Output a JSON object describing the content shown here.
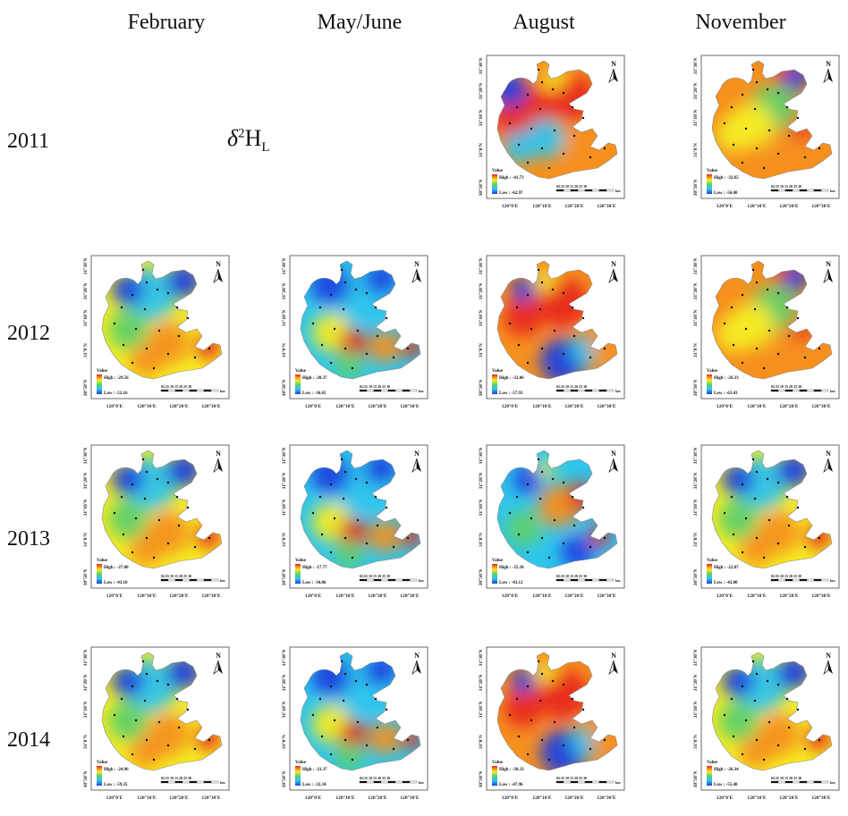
{
  "headers": {
    "columns": [
      "February",
      "May/June",
      "August",
      "November"
    ],
    "rows": [
      "2011",
      "2012",
      "2013",
      "2014"
    ]
  },
  "symbol": {
    "base": "δ",
    "sup": "2",
    "main": "H",
    "sub": "L"
  },
  "map_common": {
    "lat_labels": [
      "31°30'N",
      "31°20'N",
      "31°10'N",
      "31°0'N",
      "30°50'N"
    ],
    "lon_labels": [
      "120°0'E",
      "120°10'E",
      "120°20'E",
      "120°30'E"
    ],
    "legend_title": "Value",
    "scale_bar": "02.55  10  15  20  25  30",
    "scale_unit": "km",
    "north": "N"
  },
  "maps": [
    {
      "id": "2011-aug",
      "year": "2011",
      "season": "August",
      "high": "High : -41.73",
      "low": "Low : -62.97",
      "theme": "hot-west"
    },
    {
      "id": "2011-nov",
      "year": "2011",
      "season": "November",
      "high": "High : -32.65",
      "low": "Low : -56.00",
      "theme": "warm"
    },
    {
      "id": "2012-feb",
      "year": "2012",
      "season": "February",
      "high": "High : -29.56",
      "low": "Low : -52.16",
      "theme": "cool-north"
    },
    {
      "id": "2012-may",
      "year": "2012",
      "season": "May/June",
      "high": "High : -20.37",
      "low": "Low : -36.65",
      "theme": "cool"
    },
    {
      "id": "2012-aug",
      "year": "2012",
      "season": "August",
      "high": "High : -32.06",
      "low": "Low : -57.93",
      "theme": "hot"
    },
    {
      "id": "2012-nov",
      "year": "2012",
      "season": "November",
      "high": "High : -26.33",
      "low": "Low : -63.43",
      "theme": "warm"
    },
    {
      "id": "2013-feb",
      "year": "2013",
      "season": "February",
      "high": "High : -27.08",
      "low": "Low : -43.10",
      "theme": "cool-north"
    },
    {
      "id": "2013-may",
      "year": "2013",
      "season": "May/June",
      "high": "High : -17.77",
      "low": "Low : -34.06",
      "theme": "cool"
    },
    {
      "id": "2013-aug",
      "year": "2013",
      "season": "August",
      "high": "High : -25.18",
      "low": "Low : -43.12",
      "theme": "mixed"
    },
    {
      "id": "2013-nov",
      "year": "2013",
      "season": "November",
      "high": "High : -22.07",
      "low": "Low : -43.00",
      "theme": "cool-north"
    },
    {
      "id": "2014-feb",
      "year": "2014",
      "season": "February",
      "high": "High : -24.96",
      "low": "Low : -59.35",
      "theme": "cool-north"
    },
    {
      "id": "2014-may",
      "year": "2014",
      "season": "May/June",
      "high": "High : -21.37",
      "low": "Low : -32.34",
      "theme": "cool"
    },
    {
      "id": "2014-aug",
      "year": "2014",
      "season": "August",
      "high": "High : -30.33",
      "low": "Low : -47.96",
      "theme": "hot"
    },
    {
      "id": "2014-nov",
      "year": "2014",
      "season": "November",
      "high": "High : -26.34",
      "low": "Low : -55.48",
      "theme": "cool-north"
    }
  ],
  "colors": {
    "high": "#e8261c",
    "orange": "#f6901e",
    "yellow": "#f5ec22",
    "green": "#5fd06a",
    "cyan": "#2ec5ec",
    "blue": "#1a3fe0"
  }
}
